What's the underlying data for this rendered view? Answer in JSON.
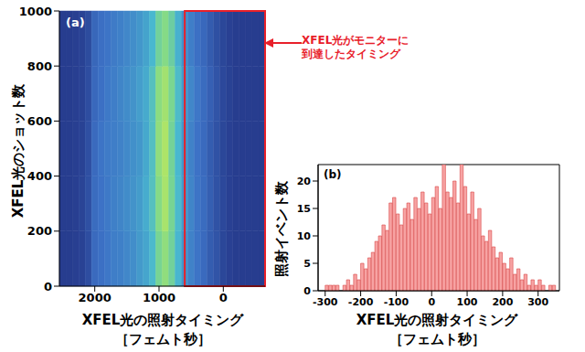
{
  "chart_data": [
    {
      "type": "heatmap",
      "panel_label": "(a)",
      "xlabel": [
        "XFEL光の照射タイミング",
        "［フェムト秒］"
      ],
      "ylabel": "XFEL光のショット数",
      "x_bins": [
        2550,
        2450,
        2350,
        2250,
        2150,
        2050,
        1950,
        1850,
        1750,
        1650,
        1550,
        1450,
        1350,
        1250,
        1150,
        1050,
        950,
        850,
        750,
        650,
        550,
        450,
        350,
        250,
        150,
        50,
        -50,
        -150,
        -250,
        -350,
        -450,
        -550,
        -650
      ],
      "y_bins": [
        0,
        200,
        400,
        600,
        800,
        1000
      ],
      "cells": [
        [
          0.02,
          0.02,
          0.03,
          0.05,
          0.12,
          0.3,
          0.34,
          0.37,
          0.4,
          0.41,
          0.44,
          0.47,
          0.52,
          0.57,
          0.66,
          0.82,
          0.88,
          0.8,
          0.64,
          0.5,
          0.42,
          0.36,
          0.3,
          0.22,
          0.16,
          0.08,
          0.04,
          0.02,
          0.02,
          0.02,
          0.02,
          0.02
        ],
        [
          0.02,
          0.02,
          0.03,
          0.06,
          0.14,
          0.31,
          0.35,
          0.38,
          0.41,
          0.43,
          0.46,
          0.49,
          0.53,
          0.6,
          0.7,
          0.86,
          0.92,
          0.82,
          0.66,
          0.52,
          0.43,
          0.36,
          0.31,
          0.23,
          0.15,
          0.09,
          0.04,
          0.02,
          0.02,
          0.02,
          0.02,
          0.02
        ],
        [
          0.02,
          0.02,
          0.03,
          0.05,
          0.13,
          0.3,
          0.36,
          0.39,
          0.4,
          0.42,
          0.45,
          0.48,
          0.51,
          0.58,
          0.69,
          0.88,
          0.93,
          0.81,
          0.65,
          0.51,
          0.42,
          0.35,
          0.3,
          0.22,
          0.15,
          0.08,
          0.04,
          0.02,
          0.02,
          0.02,
          0.02,
          0.02
        ],
        [
          0.02,
          0.02,
          0.03,
          0.05,
          0.12,
          0.29,
          0.34,
          0.38,
          0.4,
          0.43,
          0.46,
          0.49,
          0.54,
          0.59,
          0.7,
          0.87,
          0.91,
          0.83,
          0.67,
          0.52,
          0.44,
          0.37,
          0.31,
          0.24,
          0.16,
          0.09,
          0.05,
          0.02,
          0.02,
          0.02,
          0.02,
          0.02
        ],
        [
          0.02,
          0.02,
          0.03,
          0.05,
          0.11,
          0.28,
          0.33,
          0.36,
          0.39,
          0.41,
          0.44,
          0.47,
          0.51,
          0.56,
          0.65,
          0.8,
          0.86,
          0.78,
          0.62,
          0.48,
          0.4,
          0.34,
          0.29,
          0.21,
          0.14,
          0.08,
          0.04,
          0.02,
          0.02,
          0.02,
          0.02,
          0.02
        ]
      ],
      "color_range": [
        0,
        1
      ],
      "xlim": [
        2550,
        -650
      ],
      "xticks": [
        2000,
        1000,
        0
      ],
      "ylim": [
        0,
        1000
      ],
      "yticks": [
        0,
        200,
        400,
        600,
        800,
        1000
      ],
      "annotation": {
        "text": [
          "XFEL光がモニターに",
          "到達したタイミング"
        ],
        "x_range": [
          600,
          -650
        ],
        "color": "#e8202a"
      }
    },
    {
      "type": "histogram",
      "panel_label": "(b)",
      "xlabel": [
        "XFEL光の照射タイミング",
        "［フェムト秒］"
      ],
      "ylabel": "照射イベント数",
      "bins": [
        -300,
        -290,
        -280,
        -270,
        -260,
        -250,
        -240,
        -230,
        -220,
        -210,
        -200,
        -190,
        -180,
        -170,
        -160,
        -150,
        -140,
        -130,
        -120,
        -110,
        -100,
        -90,
        -80,
        -70,
        -60,
        -50,
        -40,
        -30,
        -20,
        -10,
        0,
        10,
        20,
        30,
        40,
        50,
        60,
        70,
        80,
        90,
        100,
        110,
        120,
        130,
        140,
        150,
        160,
        170,
        180,
        190,
        200,
        210,
        220,
        230,
        240,
        250,
        260,
        270,
        280,
        290,
        300,
        310,
        320,
        330,
        340,
        350
      ],
      "values": [
        1,
        1,
        1,
        1,
        0,
        1,
        2,
        1,
        3,
        2,
        5,
        4,
        6,
        7,
        9,
        10,
        12,
        11,
        16,
        17,
        14,
        12,
        15,
        16,
        13,
        17,
        15,
        18,
        16,
        14,
        17,
        19,
        15,
        23,
        18,
        17,
        20,
        16,
        23,
        19,
        14,
        18,
        13,
        15,
        10,
        9,
        11,
        8,
        6,
        7,
        5,
        4,
        6,
        3,
        4,
        2,
        3,
        1,
        2,
        1,
        2,
        1,
        0,
        1,
        1
      ],
      "color": "#f7a3a3",
      "xlim": [
        -320,
        360
      ],
      "xticks": [
        -300,
        -200,
        -100,
        0,
        100,
        200,
        300
      ],
      "ylim": [
        0,
        23
      ],
      "yticks": [
        0,
        5,
        10,
        15,
        20
      ]
    }
  ]
}
